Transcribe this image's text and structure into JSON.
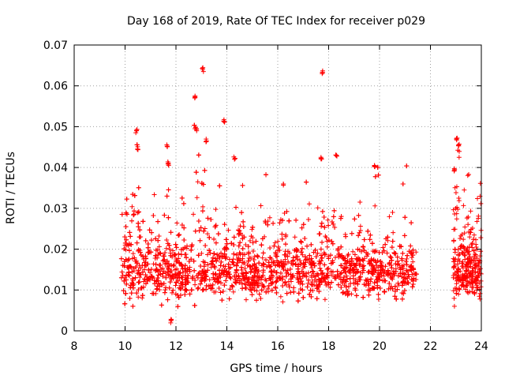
{
  "chart_data": {
    "type": "scatter",
    "title": "Day 168 of 2019, Rate Of TEC Index for receiver p029",
    "xlabel": "GPS time / hours",
    "ylabel": "ROTI / TECUs",
    "xlim": [
      8,
      24
    ],
    "ylim": [
      0,
      0.07
    ],
    "x_ticks": [
      8,
      10,
      12,
      14,
      16,
      18,
      20,
      22,
      24
    ],
    "x_tick_labels": [
      "8",
      "10",
      "12",
      "14",
      "16",
      "18",
      "20",
      "22",
      "24"
    ],
    "y_ticks": [
      0,
      0.01,
      0.02,
      0.03,
      0.04,
      0.05,
      0.06,
      0.07
    ],
    "y_tick_labels": [
      "0",
      "0.01",
      "0.02",
      "0.03",
      "0.04",
      "0.05",
      "0.06",
      "0.07"
    ],
    "grid": true,
    "marker": "+",
    "marker_color": "#ff0000",
    "data_segments": [
      {
        "x_start": 9.85,
        "x_end": 21.45,
        "typical_range": [
          0.004,
          0.025
        ]
      },
      {
        "x_start": 22.9,
        "x_end": 24.0,
        "typical_range": [
          0.005,
          0.027
        ]
      }
    ],
    "notable_points": [
      {
        "x": 10.45,
        "y": 0.049
      },
      {
        "x": 10.5,
        "y": 0.0445
      },
      {
        "x": 11.65,
        "y": 0.0452
      },
      {
        "x": 11.7,
        "y": 0.041
      },
      {
        "x": 11.8,
        "y": 0.0025
      },
      {
        "x": 12.75,
        "y": 0.0575
      },
      {
        "x": 12.8,
        "y": 0.0495
      },
      {
        "x": 13.05,
        "y": 0.064
      },
      {
        "x": 13.2,
        "y": 0.0465
      },
      {
        "x": 13.9,
        "y": 0.0512
      },
      {
        "x": 14.3,
        "y": 0.042
      },
      {
        "x": 17.75,
        "y": 0.0633
      },
      {
        "x": 17.7,
        "y": 0.0425
      },
      {
        "x": 18.3,
        "y": 0.043
      },
      {
        "x": 19.8,
        "y": 0.0405
      },
      {
        "x": 23.05,
        "y": 0.0472
      },
      {
        "x": 23.1,
        "y": 0.0455
      },
      {
        "x": 22.95,
        "y": 0.0395
      }
    ]
  }
}
